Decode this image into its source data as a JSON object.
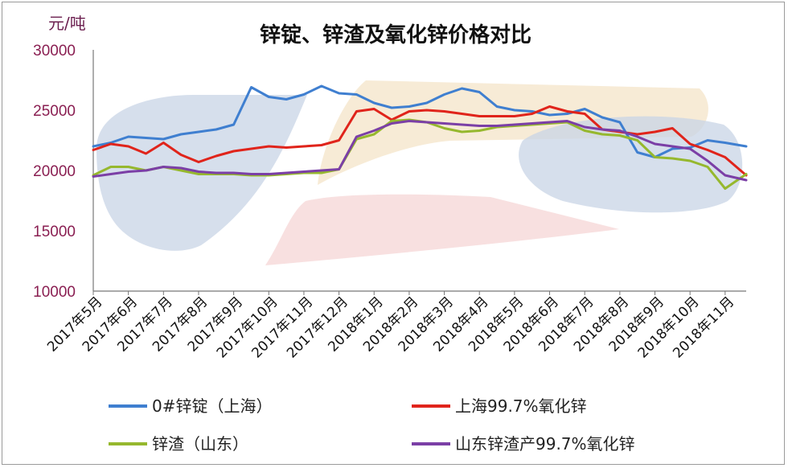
{
  "chart_data": {
    "type": "line",
    "title": "锌锭、锌渣及氧化锌价格对比",
    "ylabel": "元/吨",
    "ylim": [
      10000,
      30000
    ],
    "yticks": [
      "30000",
      "25000",
      "20000",
      "15000",
      "10000"
    ],
    "grid": false,
    "legend_position": "bottom",
    "categories": [
      "2017年5月",
      "2017年6月",
      "2017年7月",
      "2017年8月",
      "2017年9月",
      "2017年10月",
      "2017年11月",
      "2017年12月",
      "2018年1月",
      "2018年2月",
      "2018年3月",
      "2018年4月",
      "2018年5月",
      "2018年6月",
      "2018年7月",
      "2018年8月",
      "2018年9月",
      "2018年10月",
      "2018年11月"
    ],
    "x": [
      0,
      0.5,
      1,
      1.5,
      2,
      2.5,
      3,
      3.5,
      4,
      4.5,
      5,
      5.5,
      6,
      6.5,
      7,
      7.5,
      8,
      8.5,
      9,
      9.5,
      10,
      10.5,
      11,
      11.5,
      12,
      12.5,
      13,
      13.5,
      14,
      14.5,
      15,
      15.5,
      16,
      16.5,
      17,
      17.5,
      18,
      18.6
    ],
    "series": [
      {
        "name": "0#锌锭（上海）",
        "color": "#3f7fd0",
        "values": [
          22000,
          22300,
          22800,
          22700,
          22600,
          23000,
          23200,
          23400,
          23800,
          26900,
          26100,
          25900,
          26300,
          27000,
          26400,
          26300,
          25600,
          25200,
          25300,
          25600,
          26300,
          26800,
          26500,
          25300,
          25000,
          24900,
          24600,
          24700,
          25100,
          24400,
          24000,
          21500,
          21100,
          21800,
          21900,
          22500,
          22300,
          22000
        ]
      },
      {
        "name": "上海99.7%氧化锌",
        "color": "#e0241b",
        "values": [
          21700,
          22200,
          22000,
          21400,
          22300,
          21300,
          20700,
          21200,
          21600,
          21800,
          22000,
          21900,
          22000,
          22100,
          22500,
          24900,
          25100,
          24200,
          24900,
          25000,
          24900,
          24700,
          24500,
          24500,
          24500,
          24700,
          25300,
          24900,
          24700,
          23400,
          23200,
          23000,
          23200,
          23500,
          22200,
          21700,
          21100,
          19600
        ]
      },
      {
        "name": "锌渣（山东）",
        "color": "#96b82e",
        "values": [
          19600,
          20300,
          20300,
          20000,
          20300,
          20000,
          19700,
          19700,
          19700,
          19600,
          19600,
          19700,
          19800,
          19800,
          20100,
          22600,
          23000,
          24100,
          24200,
          24000,
          23500,
          23200,
          23300,
          23600,
          23700,
          23800,
          23900,
          24000,
          23300,
          23000,
          22900,
          22500,
          21100,
          21000,
          20800,
          20300,
          18500,
          19700
        ]
      },
      {
        "name": "山东锌渣产99.7%氧化锌",
        "color": "#7b3fa6",
        "values": [
          19500,
          19700,
          19900,
          20000,
          20300,
          20200,
          19900,
          19800,
          19800,
          19700,
          19700,
          19800,
          19900,
          20000,
          20100,
          22800,
          23300,
          23900,
          24100,
          24000,
          23900,
          23800,
          23700,
          23700,
          23800,
          23900,
          24000,
          24100,
          23600,
          23400,
          23300,
          22800,
          22200,
          22000,
          21800,
          20800,
          19600,
          19200
        ]
      }
    ]
  }
}
